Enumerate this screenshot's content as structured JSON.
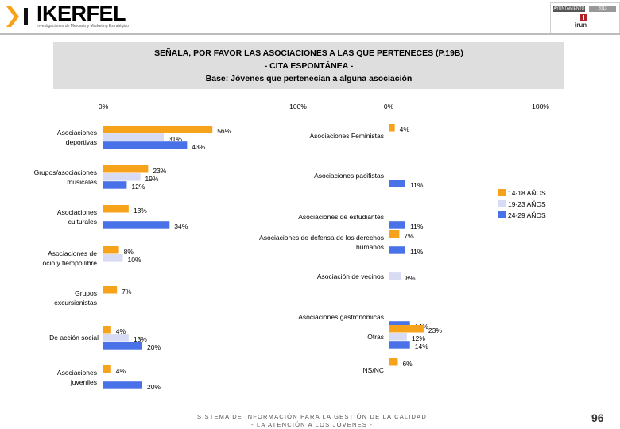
{
  "header": {
    "logo_text": "IKERFEL",
    "logo_tagline": "Investigaciones de Mercado y Marketing Estratégico",
    "right_logo_label_a": "AYUNTAMIENTO",
    "right_logo_label_b": "2013",
    "right_logo_name": "irun"
  },
  "title": {
    "line1": "SEÑALA, POR FAVOR LAS ASOCIACIONES A LAS QUE PERTENECES  (P.19B)",
    "line2": "- CITA ESPONTÁNEA -",
    "line3": "Base: Jóvenes que pertenecían a alguna asociación"
  },
  "colors": {
    "age_14_18": "#F7A21B",
    "age_19_23": "#D7DBF3",
    "age_24_29": "#4A72E8"
  },
  "chart_data": [
    {
      "type": "bar",
      "orientation": "horizontal",
      "axis_labels": [
        "0%",
        "100%"
      ],
      "xlim": [
        0,
        100
      ],
      "series": [
        {
          "name": "14-18 AÑOS",
          "values": [
            56,
            23,
            13,
            8,
            7,
            4,
            4
          ]
        },
        {
          "name": "19-23 AÑOS",
          "values": [
            31,
            19,
            0,
            10,
            0,
            13,
            0
          ]
        },
        {
          "name": "24-29 AÑOS",
          "values": [
            43,
            12,
            34,
            0,
            0,
            20,
            20
          ]
        }
      ],
      "categories": [
        {
          "label": [
            "Asociaciones",
            "deportivas"
          ]
        },
        {
          "label": [
            "Grupos/asociaciones",
            "musicales"
          ]
        },
        {
          "label": [
            "Asociaciones",
            "culturales"
          ]
        },
        {
          "label": [
            "Asociaciones de",
            "ocio y tiempo libre"
          ]
        },
        {
          "label": [
            "Grupos",
            "excursionistas"
          ]
        },
        {
          "label": [
            "De acción social"
          ]
        },
        {
          "label": [
            "Asociaciones",
            "juveniles"
          ]
        }
      ],
      "value_labels": [
        [
          "56%",
          "31%",
          "43%"
        ],
        [
          "23%",
          "19%",
          "12%"
        ],
        [
          "13%",
          "",
          "34%"
        ],
        [
          "8%",
          "10%",
          ""
        ],
        [
          "7%",
          "",
          ""
        ],
        [
          "4%",
          "13%",
          "20%"
        ],
        [
          "4%",
          "",
          "20%"
        ]
      ]
    },
    {
      "type": "bar",
      "orientation": "horizontal",
      "axis_labels": [
        "0%",
        "100%"
      ],
      "xlim": [
        0,
        100
      ],
      "series": [
        {
          "name": "14-18 AÑOS",
          "values": [
            4,
            0,
            0,
            7,
            0,
            0,
            23,
            6
          ]
        },
        {
          "name": "19-23 AÑOS",
          "values": [
            0,
            0,
            0,
            0,
            8,
            0,
            12,
            0
          ]
        },
        {
          "name": "24-29 AÑOS",
          "values": [
            0,
            11,
            11,
            11,
            0,
            14,
            14,
            0
          ]
        }
      ],
      "categories": [
        {
          "label": [
            "Asociaciones Feministas"
          ]
        },
        {
          "label": [
            "Asociaciones pacifistas"
          ]
        },
        {
          "label": [
            "Asociaciones de estudiantes"
          ]
        },
        {
          "label": [
            "Asociaciones de defensa de los derechos",
            "humanos"
          ]
        },
        {
          "label": [
            "Asociación de vecinos"
          ]
        },
        {
          "label": [
            "Asociaciones gastronómicas"
          ]
        },
        {
          "label": [
            "Otras"
          ]
        },
        {
          "label": [
            "NS/NC"
          ]
        }
      ],
      "value_labels": [
        [
          "4%",
          "",
          ""
        ],
        [
          "",
          "",
          "11%"
        ],
        [
          "",
          "",
          "11%"
        ],
        [
          "7%",
          "",
          "11%"
        ],
        [
          "",
          "8%",
          ""
        ],
        [
          "",
          "",
          "14%"
        ],
        [
          "23%",
          "12%",
          "14%"
        ],
        [
          "6%",
          "",
          ""
        ]
      ]
    }
  ],
  "legend": [
    {
      "label": "14-18 AÑOS"
    },
    {
      "label": "19-23 AÑOS"
    },
    {
      "label": "24-29 AÑOS"
    }
  ],
  "footer": {
    "line1": "SISTEMA DE INFORMACIÓN PARA LA GESTIÓN DE LA CALIDAD",
    "line2": "- LA ATENCIÓN A LOS JÓVENES -",
    "page_number": "96"
  }
}
